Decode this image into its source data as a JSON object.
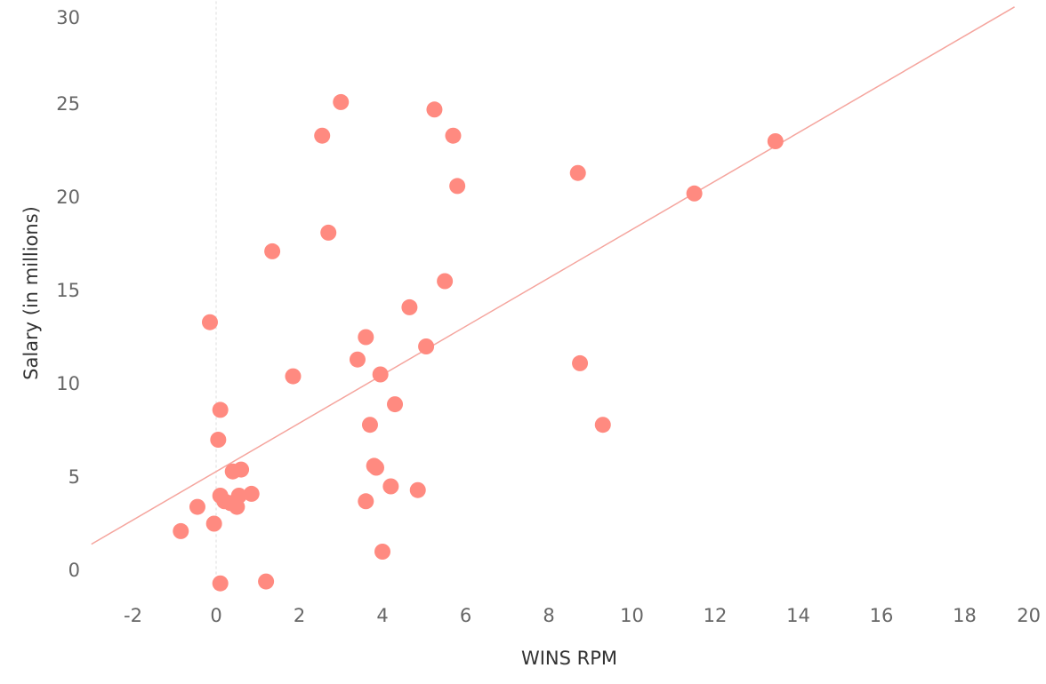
{
  "chart_data": {
    "type": "scatter",
    "title": "",
    "xlabel": "WINS RPM",
    "ylabel": "Salary (in millions)",
    "xlim": [
      -3,
      20
    ],
    "ylim": [
      -1,
      30
    ],
    "x_ticks": [
      "-2",
      "0",
      "2",
      "4",
      "6",
      "8",
      "10",
      "12",
      "14",
      "16",
      "18",
      "20"
    ],
    "y_ticks": [
      "0",
      "5",
      "10",
      "15",
      "20",
      "25",
      "30"
    ],
    "grid": false,
    "point_color": "#ff8a80",
    "trendline_color": "#f5a59e",
    "trendline": {
      "x": [
        -3,
        19.2
      ],
      "y": [
        1.4,
        30.2
      ]
    },
    "points": [
      {
        "x": 3.0,
        "y": 25.1
      },
      {
        "x": 5.25,
        "y": 24.7
      },
      {
        "x": 2.55,
        "y": 23.3
      },
      {
        "x": 5.7,
        "y": 23.3
      },
      {
        "x": 13.45,
        "y": 23.0
      },
      {
        "x": 8.7,
        "y": 21.3
      },
      {
        "x": 5.8,
        "y": 20.6
      },
      {
        "x": 11.5,
        "y": 20.2
      },
      {
        "x": 2.7,
        "y": 18.1
      },
      {
        "x": 1.35,
        "y": 17.1
      },
      {
        "x": 5.5,
        "y": 15.5
      },
      {
        "x": 4.65,
        "y": 14.1
      },
      {
        "x": -0.15,
        "y": 13.3
      },
      {
        "x": 3.6,
        "y": 12.5
      },
      {
        "x": 5.05,
        "y": 12.0
      },
      {
        "x": 3.4,
        "y": 11.3
      },
      {
        "x": 8.75,
        "y": 11.1
      },
      {
        "x": 1.85,
        "y": 10.4
      },
      {
        "x": 3.95,
        "y": 10.5
      },
      {
        "x": 4.3,
        "y": 8.9
      },
      {
        "x": 0.1,
        "y": 8.6
      },
      {
        "x": 3.7,
        "y": 7.8
      },
      {
        "x": 9.3,
        "y": 7.8
      },
      {
        "x": 0.05,
        "y": 7.0
      },
      {
        "x": 3.8,
        "y": 5.6
      },
      {
        "x": 3.85,
        "y": 5.5
      },
      {
        "x": 0.6,
        "y": 5.4
      },
      {
        "x": 0.4,
        "y": 5.3
      },
      {
        "x": 4.2,
        "y": 4.5
      },
      {
        "x": 4.85,
        "y": 4.3
      },
      {
        "x": 0.1,
        "y": 4.0
      },
      {
        "x": 0.55,
        "y": 4.0
      },
      {
        "x": 0.85,
        "y": 4.1
      },
      {
        "x": 0.2,
        "y": 3.7
      },
      {
        "x": 0.35,
        "y": 3.6
      },
      {
        "x": 3.6,
        "y": 3.7
      },
      {
        "x": 0.5,
        "y": 3.4
      },
      {
        "x": -0.45,
        "y": 3.4
      },
      {
        "x": -0.05,
        "y": 2.5
      },
      {
        "x": -0.85,
        "y": 2.1
      },
      {
        "x": 4.0,
        "y": 1.0
      },
      {
        "x": 0.1,
        "y": -0.7
      },
      {
        "x": 1.2,
        "y": -0.6
      }
    ]
  }
}
